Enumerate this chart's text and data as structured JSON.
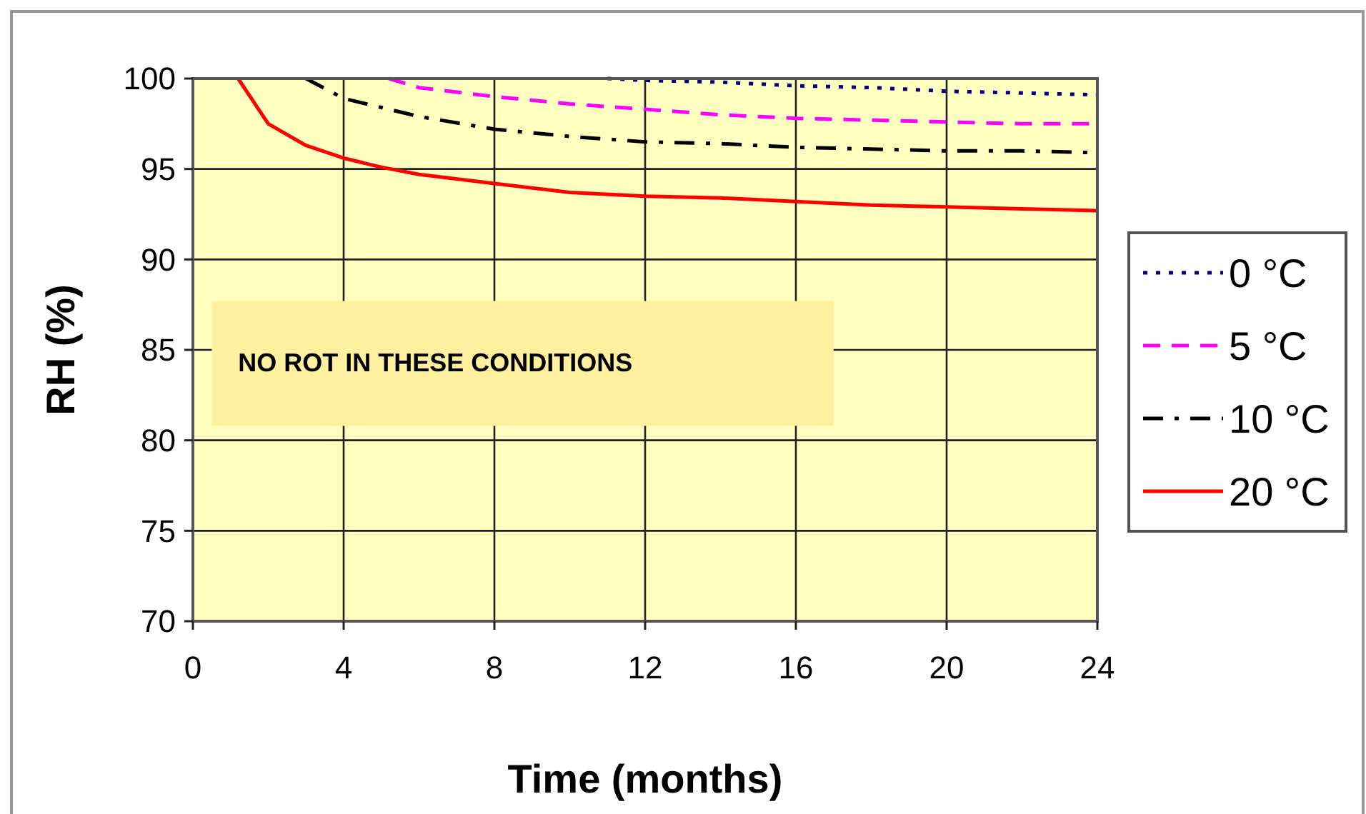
{
  "chart_data": {
    "type": "line",
    "xlabel": "Time (months)",
    "ylabel": "RH (%)",
    "xlim": [
      0,
      24
    ],
    "ylim": [
      70,
      100
    ],
    "xticks": [
      0,
      4,
      8,
      12,
      16,
      20,
      24
    ],
    "yticks": [
      70,
      75,
      80,
      85,
      90,
      95,
      100
    ],
    "grid": true,
    "legend": "right",
    "marker": "none",
    "annotations": [
      "NO ROT IN THESE CONDITIONS"
    ],
    "series": [
      {
        "name": "0 °C",
        "color": "#000080",
        "line_style": "dotted",
        "x": [
          11,
          12,
          14,
          16,
          18,
          20,
          22,
          24
        ],
        "values": [
          100,
          99.9,
          99.8,
          99.6,
          99.5,
          99.3,
          99.2,
          99.1
        ]
      },
      {
        "name": "5 °C",
        "color": "#ff00ff",
        "line_style": "dashed",
        "x": [
          5.2,
          6,
          8,
          10,
          12,
          14,
          16,
          18,
          20,
          22,
          24
        ],
        "values": [
          100,
          99.5,
          99,
          98.6,
          98.3,
          98,
          97.8,
          97.7,
          97.6,
          97.5,
          97.5
        ]
      },
      {
        "name": "10 °C",
        "color": "#000000",
        "line_style": "dashdot",
        "x": [
          3,
          4,
          6,
          8,
          10,
          12,
          14,
          16,
          18,
          20,
          22,
          24
        ],
        "values": [
          100,
          98.9,
          97.9,
          97.2,
          96.8,
          96.5,
          96.4,
          96.2,
          96.1,
          96,
          96,
          95.9
        ]
      },
      {
        "name": "20 °C",
        "color": "#ff0000",
        "line_style": "solid",
        "x": [
          1.2,
          2,
          3,
          4,
          5,
          6,
          8,
          10,
          12,
          14,
          16,
          18,
          20,
          22,
          24
        ],
        "values": [
          100,
          97.5,
          96.3,
          95.6,
          95.1,
          94.7,
          94.2,
          93.7,
          93.5,
          93.4,
          93.2,
          93,
          92.9,
          92.8,
          92.7
        ]
      }
    ]
  }
}
